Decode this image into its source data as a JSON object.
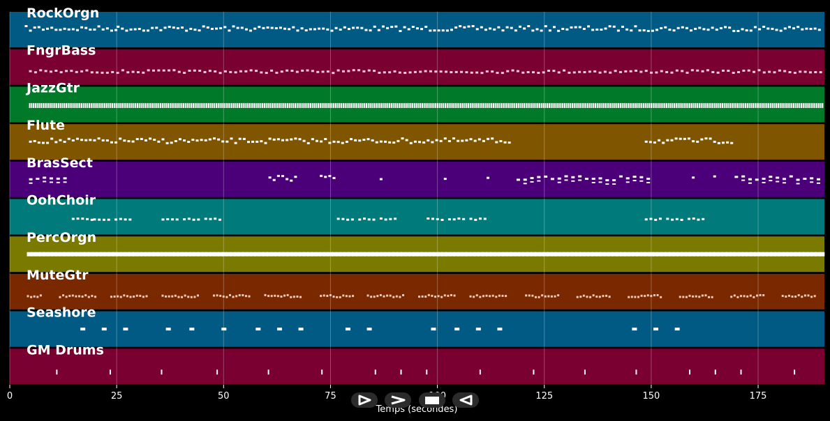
{
  "chart_data": {
    "type": "piano-roll",
    "xlabel": "Temps (secondes)",
    "xlim": [
      0,
      190.5
    ],
    "xticks": [
      0,
      25,
      50,
      75,
      100,
      125,
      150,
      175
    ],
    "grid": "vertical",
    "tracks": [
      {
        "name": "RockOrgn",
        "color": "#005a83",
        "segments": [
          [
            3.5,
            25,
            "dense"
          ],
          [
            25,
            60,
            "dense"
          ],
          [
            60,
            75,
            "dense"
          ],
          [
            75,
            116,
            "dense"
          ],
          [
            116,
            140,
            "dense"
          ],
          [
            140,
            190,
            "dense"
          ]
        ]
      },
      {
        "name": "FngrBass",
        "color": "#7a0032",
        "segments": [
          [
            4.5,
            190,
            "regular"
          ]
        ]
      },
      {
        "name": "JazzGtr",
        "color": "#007a28",
        "segments": [
          [
            4.5,
            190,
            "continuous"
          ]
        ]
      },
      {
        "name": "Flute",
        "color": "#7f5500",
        "segments": [
          [
            4.5,
            117,
            "dense"
          ],
          [
            148.5,
            169,
            "dense"
          ]
        ]
      },
      {
        "name": "BrasSect",
        "color": "#4b007a",
        "segments": [
          [
            4.5,
            14,
            "chords"
          ],
          [
            60.5,
            67,
            "dense"
          ],
          [
            72.5,
            76,
            "dense"
          ],
          [
            86.5,
            87.5,
            "dense"
          ],
          [
            101.5,
            102.5,
            "dense"
          ],
          [
            111.5,
            112.5,
            "dense"
          ],
          [
            118.5,
            149,
            "chords"
          ],
          [
            159.5,
            160.5,
            "dense"
          ],
          [
            164.5,
            165.5,
            "dense"
          ],
          [
            169.5,
            190,
            "chords"
          ]
        ]
      },
      {
        "name": "OohChoir",
        "color": "#007a7a",
        "segments": [
          [
            14.5,
            19.5,
            "phrase"
          ],
          [
            19.5,
            23.5,
            "phrase"
          ],
          [
            24.5,
            28.5,
            "phrase"
          ],
          [
            35.5,
            39.5,
            "phrase"
          ],
          [
            40.5,
            44.5,
            "phrase"
          ],
          [
            45.5,
            49,
            "phrase"
          ],
          [
            76.5,
            80.5,
            "phrase"
          ],
          [
            81.5,
            85.5,
            "phrase"
          ],
          [
            86.5,
            90.5,
            "phrase"
          ],
          [
            97.5,
            101.5,
            "phrase"
          ],
          [
            102.5,
            106.5,
            "phrase"
          ],
          [
            107.5,
            111.5,
            "phrase"
          ],
          [
            148.5,
            152.5,
            "phrase"
          ],
          [
            153.5,
            157.5,
            "phrase"
          ],
          [
            158.5,
            162,
            "phrase"
          ]
        ]
      },
      {
        "name": "PercOrgn",
        "color": "#7a7a00",
        "segments": [
          [
            4,
            190,
            "thick"
          ]
        ]
      },
      {
        "name": "MuteGtr",
        "color": "#7a2800",
        "segments": [
          [
            4,
            7.5,
            "sparse"
          ],
          [
            11.5,
            20.5,
            "sparse"
          ],
          [
            23.5,
            32.5,
            "sparse"
          ],
          [
            35.5,
            44.5,
            "sparse"
          ],
          [
            47.5,
            56.5,
            "sparse"
          ],
          [
            59.5,
            68.5,
            "sparse"
          ],
          [
            72.5,
            80.5,
            "sparse"
          ],
          [
            83.5,
            92.5,
            "sparse"
          ],
          [
            95.5,
            104.5,
            "sparse"
          ],
          [
            107.5,
            116.5,
            "sparse"
          ],
          [
            120.5,
            128.5,
            "sparse"
          ],
          [
            132.5,
            140.5,
            "sparse"
          ],
          [
            144.5,
            152.5,
            "sparse"
          ],
          [
            156.5,
            164.5,
            "sparse"
          ],
          [
            168.5,
            176.5,
            "sparse"
          ],
          [
            180.5,
            188.5,
            "sparse"
          ]
        ]
      },
      {
        "name": "Seashore",
        "color": "#005a83",
        "notes": [
          17,
          22,
          27,
          37,
          42.5,
          50,
          58,
          63,
          68,
          79,
          84,
          99,
          104.5,
          109.5,
          114.5,
          146,
          151,
          156
        ]
      },
      {
        "name": "GM Drums",
        "color": "#7a0032",
        "notes": [
          11,
          23.5,
          35.5,
          48.5,
          60.5,
          73,
          85.5,
          91.5,
          97.5,
          110,
          122.5,
          134.5,
          146.5,
          159,
          165,
          171,
          183.5
        ]
      }
    ]
  },
  "controls": {
    "play": "play-icon",
    "fast_forward": "fast-forward-icon",
    "stop": "stop-icon",
    "rewind": "rewind-icon"
  }
}
